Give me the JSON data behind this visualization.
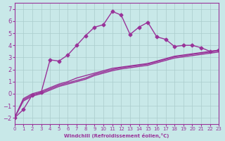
{
  "xlabel": "Windchill (Refroidissement éolien,°C)",
  "bg_color": "#c8e8e8",
  "line_color": "#993399",
  "grid_color": "#aacccc",
  "xlim": [
    0,
    23
  ],
  "ylim": [
    -2.5,
    7.5
  ],
  "xticks": [
    0,
    1,
    2,
    3,
    4,
    5,
    6,
    7,
    8,
    9,
    10,
    11,
    12,
    13,
    14,
    15,
    16,
    17,
    18,
    19,
    20,
    21,
    22,
    23
  ],
  "yticks": [
    -2,
    -1,
    0,
    1,
    2,
    3,
    4,
    5,
    6,
    7
  ],
  "series1_x": [
    0,
    1,
    2,
    3,
    4,
    5,
    6,
    7,
    8,
    9,
    10,
    11,
    12,
    13,
    14,
    15,
    16,
    17,
    18,
    19,
    20,
    21,
    22,
    23
  ],
  "series1_y": [
    -2.0,
    -1.3,
    -0.1,
    0.1,
    2.8,
    2.7,
    3.2,
    4.0,
    4.8,
    5.5,
    5.7,
    6.8,
    6.5,
    4.9,
    5.5,
    5.9,
    4.7,
    4.5,
    3.9,
    4.0,
    4.0,
    3.8,
    3.5,
    3.6
  ],
  "series2_x": [
    0,
    1,
    2,
    3,
    4,
    5,
    6,
    7,
    8,
    9,
    10,
    11,
    12,
    13,
    14,
    15,
    16,
    17,
    18,
    19,
    20,
    21,
    22,
    23
  ],
  "series2_y": [
    -2.0,
    -0.4,
    0.0,
    0.2,
    0.5,
    0.8,
    1.0,
    1.3,
    1.5,
    1.7,
    1.9,
    2.1,
    2.2,
    2.3,
    2.4,
    2.5,
    2.7,
    2.9,
    3.1,
    3.2,
    3.3,
    3.4,
    3.5,
    3.6
  ],
  "series3_x": [
    0,
    1,
    2,
    3,
    4,
    5,
    6,
    7,
    8,
    9,
    10,
    11,
    12,
    13,
    14,
    15,
    16,
    17,
    18,
    19,
    20,
    21,
    22,
    23
  ],
  "series3_y": [
    -2.0,
    -0.5,
    -0.1,
    0.1,
    0.4,
    0.7,
    0.9,
    1.1,
    1.3,
    1.6,
    1.8,
    2.0,
    2.15,
    2.25,
    2.35,
    2.45,
    2.65,
    2.85,
    3.05,
    3.15,
    3.25,
    3.35,
    3.45,
    3.55
  ],
  "series4_x": [
    0,
    1,
    2,
    3,
    4,
    5,
    6,
    7,
    8,
    9,
    10,
    11,
    12,
    13,
    14,
    15,
    16,
    17,
    18,
    19,
    20,
    21,
    22,
    23
  ],
  "series4_y": [
    -2.0,
    -0.6,
    -0.2,
    0.0,
    0.3,
    0.6,
    0.8,
    1.0,
    1.2,
    1.5,
    1.7,
    1.9,
    2.05,
    2.15,
    2.25,
    2.35,
    2.55,
    2.75,
    2.95,
    3.05,
    3.15,
    3.25,
    3.35,
    3.45
  ]
}
